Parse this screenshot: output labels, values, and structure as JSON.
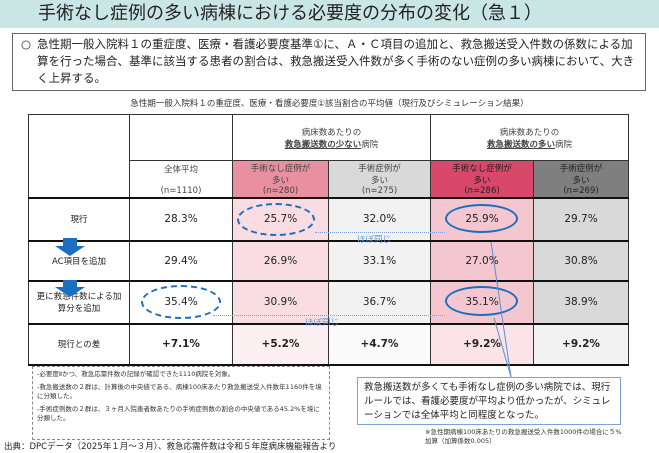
{
  "title": "手術なし症例の多い病棟における必要度の分布の変化（急１）",
  "summary": {
    "bullet": "○",
    "text": "急性期一般入院料１の重症度、医療・看護必要度基準①に、Ａ・Ｃ項目の追加と、救急搬送受入件数の係数による加算を行った場合、基準に該当する患者の割合は、救急搬送受入件数が多く手術のない症例の多い病棟において、大きく上昇する。"
  },
  "table_title": "急性期一般入院料１の重症度、医療・看護必要度①該当割合の平均値（現行及びシミュレーション結果）",
  "groups": [
    {
      "line1": "病床数あたりの",
      "em": "救急搬送数の少ない",
      "suffix": "病院"
    },
    {
      "line1": "病床数あたりの",
      "em": "救急搬送数の多い",
      "suffix": "病院"
    }
  ],
  "columns": [
    {
      "label": "全体平均",
      "n": "(n=1110)"
    },
    {
      "label1": "手術なし症例が",
      "label2": "多い",
      "n": "(n=280)",
      "color": "#e8909f"
    },
    {
      "label1": "手術症例が",
      "label2": "多い",
      "n": "(n=275)",
      "color": "#d9d9d9"
    },
    {
      "label1": "手術なし症例が",
      "label2": "多い",
      "n": "(n=286)",
      "color": "#d9476a"
    },
    {
      "label1": "手術症例が",
      "label2": "多い",
      "n": "(n=269)",
      "color": "#7f7f7f"
    }
  ],
  "rows": [
    {
      "label": "現行",
      "values": [
        "28.3%",
        "25.7%",
        "32.0%",
        "25.9%",
        "29.7%"
      ]
    },
    {
      "label": "AC項目を追加",
      "values": [
        "29.4%",
        "26.9%",
        "33.1%",
        "27.0%",
        "30.8%"
      ]
    },
    {
      "label": "更に救急件数による加算分を追加",
      "values": [
        "35.4%",
        "30.9%",
        "36.7%",
        "35.1%",
        "38.9%"
      ]
    },
    {
      "label": "現行との差",
      "values": [
        "+7.1%",
        "+5.2%",
        "+4.7%",
        "+9.2%",
        "+9.2%"
      ]
    }
  ],
  "annotations": {
    "same1": "ほぼ同じ",
    "same2": "ほぼ同じ"
  },
  "notes": [
    "-必要度Ⅱかつ、救急応需件数の記録が確認できた1110病院を対象。",
    "-救急搬送数の２群は、計算後の中央値である、病棟100床あたり救急搬送受入件数年1160件を境に分類した。",
    "-手術症例数の２群は、３ヶ月入院患者数あたりの手術症例数の割合の中央値である45.2%を境に分類した。"
  ],
  "callout": "救急搬送数が多くても手術なし症例の多い病院では、現行ルールでは、看護必要度が平均より低かったが、シミュレーションでは全体平均と同程度となった。",
  "footnote": "※急性期病棟100床あたりの救急搬送受入件数1000件の場合に５%加算（加算係数0.005）",
  "source": "出典：DPCデータ（2025年１月～３月）、救急応需件数は令和５年度病床機能報告より"
}
